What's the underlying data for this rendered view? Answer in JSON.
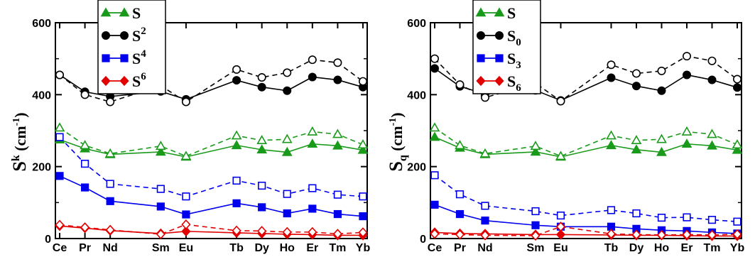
{
  "chart_data": [
    {
      "type": "line",
      "categories": [
        "Ce",
        "Pr",
        "Nd",
        "Sm",
        "Eu",
        "Tb",
        "Dy",
        "Ho",
        "Er",
        "Tm",
        "Yb"
      ],
      "x_positions": [
        58,
        59,
        60,
        62,
        63,
        65,
        66,
        67,
        68,
        69,
        70
      ],
      "ylabel": {
        "base": "S",
        "sup": "k",
        "unit": "(cm",
        "unit_sup": "-1",
        "close": ")"
      },
      "ylim": [
        0,
        600
      ],
      "yticks": [
        0,
        200,
        400,
        600
      ],
      "legend": {
        "placement": "top-left",
        "entries": [
          {
            "base": "S",
            "sup": "",
            "sub": "",
            "color": "#1a9a1a",
            "marker": "triangle"
          },
          {
            "base": "S",
            "sup": "2",
            "sub": "",
            "color": "#000000",
            "marker": "circle"
          },
          {
            "base": "S",
            "sup": "4",
            "sub": "",
            "color": "#0000ee",
            "marker": "square"
          },
          {
            "base": "S",
            "sup": "6",
            "sub": "",
            "color": "#e00000",
            "marker": "diamond"
          }
        ]
      },
      "series": [
        {
          "color": "#1a9a1a",
          "marker": "triangle",
          "style": "solid",
          "filled": true,
          "values": [
            275,
            250,
            234,
            241,
            227,
            259,
            247,
            240,
            263,
            258,
            246
          ]
        },
        {
          "color": "#1a9a1a",
          "marker": "triangle",
          "style": "dashed",
          "filled": false,
          "values": [
            308,
            259,
            236,
            257,
            229,
            286,
            273,
            276,
            297,
            290,
            261
          ]
        },
        {
          "color": "#000000",
          "marker": "circle",
          "style": "solid",
          "filled": true,
          "values": [
            455,
            408,
            395,
            409,
            387,
            440,
            421,
            411,
            449,
            441,
            421
          ]
        },
        {
          "color": "#000000",
          "marker": "circle",
          "style": "dashed",
          "filled": false,
          "values": [
            455,
            400,
            380,
            425,
            380,
            470,
            448,
            461,
            497,
            489,
            437
          ]
        },
        {
          "color": "#0000ee",
          "marker": "square",
          "style": "solid",
          "filled": true,
          "values": [
            174,
            142,
            104,
            89,
            67,
            98,
            87,
            70,
            83,
            68,
            62
          ]
        },
        {
          "color": "#0000ee",
          "marker": "square",
          "style": "dashed",
          "filled": false,
          "values": [
            282,
            208,
            152,
            138,
            117,
            161,
            147,
            124,
            140,
            122,
            117
          ]
        },
        {
          "color": "#e00000",
          "marker": "diamond",
          "style": "solid",
          "filled": true,
          "values": [
            35,
            29,
            22,
            14,
            20,
            16,
            14,
            12,
            11,
            9,
            9
          ]
        },
        {
          "color": "#e00000",
          "marker": "diamond",
          "style": "dashed",
          "filled": false,
          "values": [
            38,
            31,
            24,
            12,
            39,
            22,
            21,
            18,
            18,
            13,
            17
          ]
        }
      ]
    },
    {
      "type": "line",
      "categories": [
        "Ce",
        "Pr",
        "Nd",
        "Sm",
        "Eu",
        "Tb",
        "Dy",
        "Ho",
        "Er",
        "Tm",
        "Yb"
      ],
      "x_positions": [
        58,
        59,
        60,
        62,
        63,
        65,
        66,
        67,
        68,
        69,
        70
      ],
      "ylabel": {
        "base": "S",
        "sub": "q",
        "unit": "(cm",
        "unit_sup": "-1",
        "close": ")"
      },
      "ylim": [
        0,
        600
      ],
      "yticks": [
        0,
        200,
        400,
        600
      ],
      "legend": {
        "placement": "top-left",
        "entries": [
          {
            "base": "S",
            "sup": "",
            "sub": "",
            "color": "#1a9a1a",
            "marker": "triangle"
          },
          {
            "base": "S",
            "sup": "",
            "sub": "0",
            "color": "#000000",
            "marker": "circle"
          },
          {
            "base": "S",
            "sup": "",
            "sub": "3",
            "color": "#0000ee",
            "marker": "square"
          },
          {
            "base": "S",
            "sup": "",
            "sub": "6",
            "color": "#e00000",
            "marker": "diamond"
          }
        ]
      },
      "series": [
        {
          "color": "#1a9a1a",
          "marker": "triangle",
          "style": "solid",
          "filled": true,
          "values": [
            282,
            252,
            234,
            241,
            227,
            259,
            247,
            240,
            263,
            258,
            246
          ]
        },
        {
          "color": "#1a9a1a",
          "marker": "triangle",
          "style": "dashed",
          "filled": false,
          "values": [
            308,
            259,
            236,
            257,
            229,
            286,
            273,
            276,
            297,
            290,
            261
          ]
        },
        {
          "color": "#000000",
          "marker": "circle",
          "style": "solid",
          "filled": true,
          "values": [
            473,
            423,
            402,
            412,
            384,
            447,
            424,
            411,
            455,
            441,
            420
          ]
        },
        {
          "color": "#000000",
          "marker": "circle",
          "style": "dashed",
          "filled": false,
          "values": [
            500,
            428,
            392,
            432,
            382,
            483,
            459,
            466,
            507,
            494,
            443
          ]
        },
        {
          "color": "#0000ee",
          "marker": "square",
          "style": "solid",
          "filled": true,
          "values": [
            94,
            68,
            50,
            37,
            33,
            33,
            27,
            23,
            21,
            17,
            14
          ]
        },
        {
          "color": "#0000ee",
          "marker": "square",
          "style": "dashed",
          "filled": false,
          "values": [
            176,
            123,
            91,
            76,
            64,
            79,
            70,
            58,
            59,
            52,
            47
          ]
        },
        {
          "color": "#e00000",
          "marker": "diamond",
          "style": "solid",
          "filled": true,
          "values": [
            17,
            14,
            13,
            11,
            11,
            10,
            9,
            9,
            8,
            7,
            7
          ]
        },
        {
          "color": "#e00000",
          "marker": "diamond",
          "style": "dashed",
          "filled": false,
          "values": [
            13,
            11,
            9,
            8,
            33,
            13,
            11,
            10,
            11,
            10,
            12
          ]
        }
      ]
    }
  ]
}
